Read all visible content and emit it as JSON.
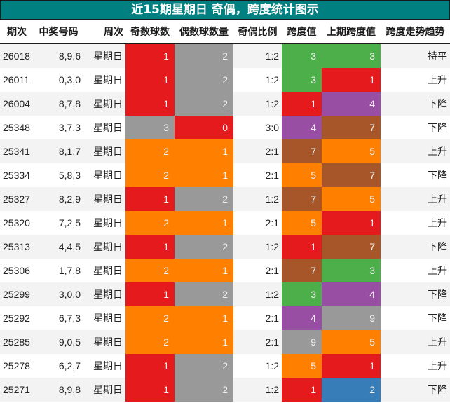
{
  "title": "近15期星期日 奇偶，跨度统计图示",
  "columns": [
    "期次",
    "中奖号码",
    "周次",
    "奇数球数",
    "偶数球数量",
    "奇偶比例",
    "跨度值",
    "上期跨度值",
    "跨度走势趋势"
  ],
  "palette": {
    "0": "#e41a1c",
    "1": "#e41a1c",
    "2": "#ff7f00",
    "3": "#4daf4a",
    "4": "#984ea3",
    "5": "#ff7f00",
    "7": "#a65628",
    "9": "#999999",
    "odd1": "#e41a1c",
    "odd2": "#ff7f00",
    "odd3": "#999999",
    "even0": "#e41a1c",
    "even1": "#ff7f00",
    "even2": "#999999",
    "span2": "#377eb8"
  },
  "rows": [
    {
      "issue": "26018",
      "numbers": "8,9,6",
      "weekday": "星期日",
      "odd": "1",
      "even": "2",
      "ratio": "1:2",
      "span": "3",
      "prev_span": "3",
      "trend": "持平",
      "odd_color": "#e41a1c",
      "even_color": "#999999",
      "span_color": "#4daf4a",
      "prev_color": "#4daf4a"
    },
    {
      "issue": "26011",
      "numbers": "0,3,0",
      "weekday": "星期日",
      "odd": "1",
      "even": "2",
      "ratio": "1:2",
      "span": "3",
      "prev_span": "1",
      "trend": "上升",
      "odd_color": "#e41a1c",
      "even_color": "#999999",
      "span_color": "#4daf4a",
      "prev_color": "#e41a1c"
    },
    {
      "issue": "26004",
      "numbers": "8,7,8",
      "weekday": "星期日",
      "odd": "1",
      "even": "2",
      "ratio": "1:2",
      "span": "1",
      "prev_span": "4",
      "trend": "下降",
      "odd_color": "#e41a1c",
      "even_color": "#999999",
      "span_color": "#e41a1c",
      "prev_color": "#984ea3"
    },
    {
      "issue": "25348",
      "numbers": "3,7,3",
      "weekday": "星期日",
      "odd": "3",
      "even": "0",
      "ratio": "3:0",
      "span": "4",
      "prev_span": "7",
      "trend": "下降",
      "odd_color": "#999999",
      "even_color": "#e41a1c",
      "span_color": "#984ea3",
      "prev_color": "#a65628"
    },
    {
      "issue": "25341",
      "numbers": "8,1,7",
      "weekday": "星期日",
      "odd": "2",
      "even": "1",
      "ratio": "2:1",
      "span": "7",
      "prev_span": "5",
      "trend": "上升",
      "odd_color": "#ff7f00",
      "even_color": "#ff7f00",
      "span_color": "#a65628",
      "prev_color": "#ff7f00"
    },
    {
      "issue": "25334",
      "numbers": "5,8,3",
      "weekday": "星期日",
      "odd": "2",
      "even": "1",
      "ratio": "2:1",
      "span": "5",
      "prev_span": "7",
      "trend": "下降",
      "odd_color": "#ff7f00",
      "even_color": "#ff7f00",
      "span_color": "#ff7f00",
      "prev_color": "#a65628"
    },
    {
      "issue": "25327",
      "numbers": "8,2,9",
      "weekday": "星期日",
      "odd": "1",
      "even": "2",
      "ratio": "1:2",
      "span": "7",
      "prev_span": "5",
      "trend": "上升",
      "odd_color": "#e41a1c",
      "even_color": "#999999",
      "span_color": "#a65628",
      "prev_color": "#ff7f00"
    },
    {
      "issue": "25320",
      "numbers": "7,2,5",
      "weekday": "星期日",
      "odd": "2",
      "even": "1",
      "ratio": "2:1",
      "span": "5",
      "prev_span": "1",
      "trend": "上升",
      "odd_color": "#ff7f00",
      "even_color": "#ff7f00",
      "span_color": "#ff7f00",
      "prev_color": "#e41a1c"
    },
    {
      "issue": "25313",
      "numbers": "4,4,5",
      "weekday": "星期日",
      "odd": "1",
      "even": "2",
      "ratio": "1:2",
      "span": "1",
      "prev_span": "7",
      "trend": "下降",
      "odd_color": "#e41a1c",
      "even_color": "#999999",
      "span_color": "#e41a1c",
      "prev_color": "#a65628"
    },
    {
      "issue": "25306",
      "numbers": "1,7,8",
      "weekday": "星期日",
      "odd": "2",
      "even": "1",
      "ratio": "2:1",
      "span": "7",
      "prev_span": "3",
      "trend": "上升",
      "odd_color": "#ff7f00",
      "even_color": "#ff7f00",
      "span_color": "#a65628",
      "prev_color": "#4daf4a"
    },
    {
      "issue": "25299",
      "numbers": "3,0,0",
      "weekday": "星期日",
      "odd": "1",
      "even": "2",
      "ratio": "1:2",
      "span": "3",
      "prev_span": "4",
      "trend": "下降",
      "odd_color": "#e41a1c",
      "even_color": "#999999",
      "span_color": "#4daf4a",
      "prev_color": "#984ea3"
    },
    {
      "issue": "25292",
      "numbers": "6,7,3",
      "weekday": "星期日",
      "odd": "2",
      "even": "1",
      "ratio": "2:1",
      "span": "4",
      "prev_span": "9",
      "trend": "下降",
      "odd_color": "#ff7f00",
      "even_color": "#ff7f00",
      "span_color": "#984ea3",
      "prev_color": "#999999"
    },
    {
      "issue": "25285",
      "numbers": "9,0,5",
      "weekday": "星期日",
      "odd": "2",
      "even": "1",
      "ratio": "2:1",
      "span": "9",
      "prev_span": "5",
      "trend": "上升",
      "odd_color": "#ff7f00",
      "even_color": "#ff7f00",
      "span_color": "#999999",
      "prev_color": "#ff7f00"
    },
    {
      "issue": "25278",
      "numbers": "6,2,7",
      "weekday": "星期日",
      "odd": "1",
      "even": "2",
      "ratio": "1:2",
      "span": "5",
      "prev_span": "1",
      "trend": "上升",
      "odd_color": "#e41a1c",
      "even_color": "#999999",
      "span_color": "#ff7f00",
      "prev_color": "#e41a1c"
    },
    {
      "issue": "25271",
      "numbers": "8,9,8",
      "weekday": "星期日",
      "odd": "1",
      "even": "2",
      "ratio": "1:2",
      "span": "1",
      "prev_span": "2",
      "trend": "下降",
      "odd_color": "#e41a1c",
      "even_color": "#999999",
      "span_color": "#e41a1c",
      "prev_color": "#377eb8"
    }
  ],
  "chart_data": {
    "type": "table",
    "title": "近15期星期日 奇偶，跨度统计图示",
    "columns": [
      "期次",
      "中奖号码",
      "周次",
      "奇数球数",
      "偶数球数量",
      "奇偶比例",
      "跨度值",
      "上期跨度值",
      "跨度走势趋势"
    ],
    "rows": [
      [
        "26018",
        "8,9,6",
        "星期日",
        1,
        2,
        "1:2",
        3,
        3,
        "持平"
      ],
      [
        "26011",
        "0,3,0",
        "星期日",
        1,
        2,
        "1:2",
        3,
        1,
        "上升"
      ],
      [
        "26004",
        "8,7,8",
        "星期日",
        1,
        2,
        "1:2",
        1,
        4,
        "下降"
      ],
      [
        "25348",
        "3,7,3",
        "星期日",
        3,
        0,
        "3:0",
        4,
        7,
        "下降"
      ],
      [
        "25341",
        "8,1,7",
        "星期日",
        2,
        1,
        "2:1",
        7,
        5,
        "上升"
      ],
      [
        "25334",
        "5,8,3",
        "星期日",
        2,
        1,
        "2:1",
        5,
        7,
        "下降"
      ],
      [
        "25327",
        "8,2,9",
        "星期日",
        1,
        2,
        "1:2",
        7,
        5,
        "上升"
      ],
      [
        "25320",
        "7,2,5",
        "星期日",
        2,
        1,
        "2:1",
        5,
        1,
        "上升"
      ],
      [
        "25313",
        "4,4,5",
        "星期日",
        1,
        2,
        "1:2",
        1,
        7,
        "下降"
      ],
      [
        "25306",
        "1,7,8",
        "星期日",
        2,
        1,
        "2:1",
        7,
        3,
        "上升"
      ],
      [
        "25299",
        "3,0,0",
        "星期日",
        1,
        2,
        "1:2",
        3,
        4,
        "下降"
      ],
      [
        "25292",
        "6,7,3",
        "星期日",
        2,
        1,
        "2:1",
        4,
        9,
        "下降"
      ],
      [
        "25285",
        "9,0,5",
        "星期日",
        2,
        1,
        "2:1",
        9,
        5,
        "上升"
      ],
      [
        "25278",
        "6,2,7",
        "星期日",
        1,
        2,
        "1:2",
        5,
        1,
        "上升"
      ],
      [
        "25271",
        "8,9,8",
        "星期日",
        1,
        2,
        "1:2",
        1,
        2,
        "下降"
      ]
    ]
  }
}
